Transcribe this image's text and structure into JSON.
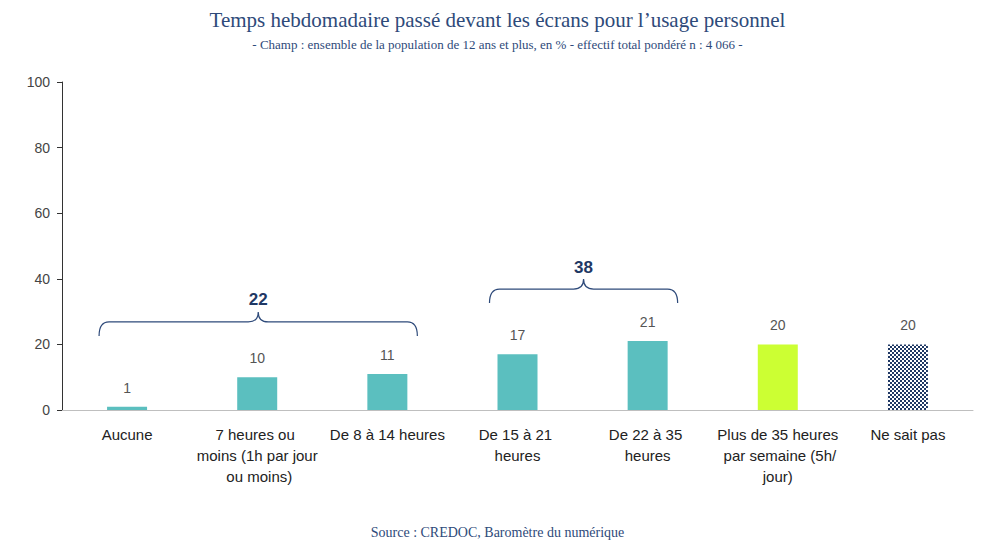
{
  "chart_data": {
    "type": "bar",
    "title": "Temps hebdomadaire passé devant les écrans pour l’usage personnel",
    "subtitle": "- Champ : ensemble de la population de 12 ans et plus, en % - effectif total pondéré n : 4 066 -",
    "source": "Source : CREDOC, Baromètre du numérique",
    "categories": [
      "Aucune",
      "7 heures ou moins (1h par jour ou moins)",
      "De 8 à 14 heures",
      "De 15 à 21 heures",
      "De 22 à 35 heures",
      "Plus de 35 heures par semaine (5h/jour)",
      "Ne sait pas"
    ],
    "values": [
      1,
      10,
      11,
      17,
      21,
      20,
      20
    ],
    "colors": [
      "#5bbfbf",
      "#5bbfbf",
      "#5bbfbf",
      "#5bbfbf",
      "#5bbfbf",
      "#ccff33",
      "#1f3864"
    ],
    "ylim": [
      0,
      100
    ],
    "yticks": [
      0,
      20,
      40,
      60,
      80,
      100
    ],
    "grid": false,
    "data_labels": true,
    "annotations": [
      {
        "value": 22,
        "from": "Aucune",
        "to": "De 8 à 14 heures"
      },
      {
        "value": 38,
        "from": "De 15 à 21 heures",
        "to": "De 22 à 35 heures"
      }
    ]
  }
}
